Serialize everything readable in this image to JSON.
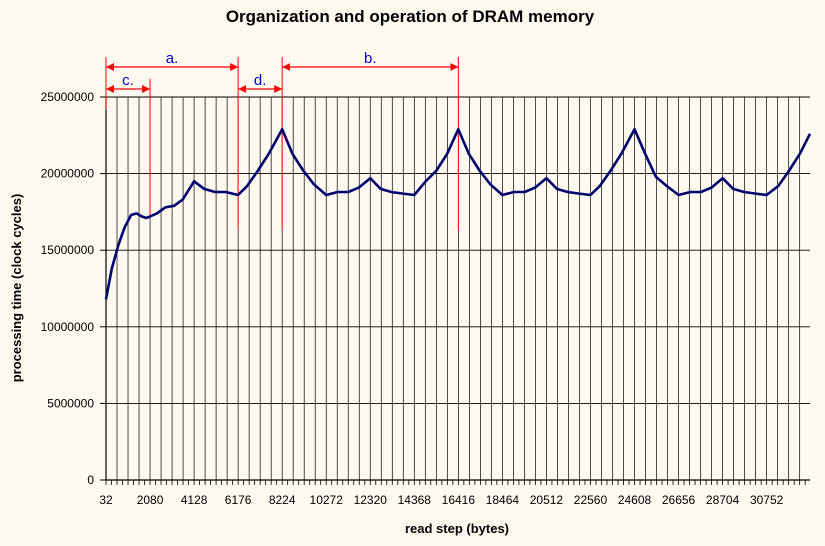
{
  "chart_data": {
    "type": "line",
    "title": "Organization and operation of DRAM memory",
    "xlabel": "read step (bytes)",
    "ylabel": "processing time (clock cycles)",
    "ylim": [
      0,
      25000000
    ],
    "xlim": [
      32,
      32768
    ],
    "grid": true,
    "y_ticks": [
      0,
      5000000,
      10000000,
      15000000,
      20000000,
      25000000
    ],
    "y_tick_labels": [
      "0",
      "5000000",
      "10000000",
      "15000000",
      "20000000",
      "25000000"
    ],
    "x_ticks": [
      32,
      2080,
      4128,
      6176,
      8224,
      10272,
      12320,
      14368,
      16416,
      18464,
      20512,
      22560,
      24608,
      26656,
      28704,
      30752
    ],
    "x_tick_labels": [
      "32",
      "2080",
      "4128",
      "6176",
      "8224",
      "10272",
      "12320",
      "14368",
      "16416",
      "18464",
      "20512",
      "22560",
      "24608",
      "26656",
      "28704",
      "30752"
    ],
    "series": [
      {
        "color": "#00006e",
        "x": [
          32,
          300,
          600,
          900,
          1200,
          1450,
          1700,
          1900,
          2080,
          2400,
          2800,
          3200,
          3600,
          4128,
          4600,
          5100,
          5600,
          6176,
          6600,
          7100,
          7600,
          8224,
          8700,
          9200,
          9700,
          10272,
          10800,
          11300,
          11800,
          12320,
          12800,
          13300,
          13800,
          14368,
          14900,
          15400,
          15900,
          16416,
          16900,
          17400,
          17900,
          18464,
          19000,
          19500,
          20000,
          20512,
          21000,
          21500,
          22000,
          22560,
          23000,
          23500,
          24000,
          24608,
          25100,
          25600,
          26100,
          26656,
          27200,
          27700,
          28200,
          28704,
          29200,
          29700,
          30200,
          30752,
          31300,
          31800,
          32300,
          32768
        ],
        "values": [
          11800000,
          13800000,
          15300000,
          16500000,
          17300000,
          17400000,
          17200000,
          17100000,
          17200000,
          17400000,
          17800000,
          17900000,
          18300000,
          19500000,
          19000000,
          18800000,
          18800000,
          18600000,
          19200000,
          20200000,
          21300000,
          22900000,
          21300000,
          20200000,
          19300000,
          18600000,
          18800000,
          18800000,
          19100000,
          19700000,
          19000000,
          18800000,
          18700000,
          18600000,
          19500000,
          20200000,
          21300000,
          22900000,
          21300000,
          20200000,
          19300000,
          18600000,
          18800000,
          18800000,
          19100000,
          19700000,
          19000000,
          18800000,
          18700000,
          18600000,
          19200000,
          20200000,
          21300000,
          22900000,
          21300000,
          19800000,
          19200000,
          18600000,
          18800000,
          18800000,
          19100000,
          19700000,
          19000000,
          18800000,
          18700000,
          18600000,
          19200000,
          20200000,
          21300000,
          22600000
        ]
      }
    ],
    "annotations": [
      {
        "label": "a.",
        "x_start": 32,
        "x_end": 6176
      },
      {
        "label": "b.",
        "x_start": 8224,
        "x_end": 16416
      },
      {
        "label": "c.",
        "x_start": 32,
        "x_end": 2080
      },
      {
        "label": "d.",
        "x_start": 6176,
        "x_end": 8224
      }
    ],
    "annotation_color": "#ff0000"
  }
}
